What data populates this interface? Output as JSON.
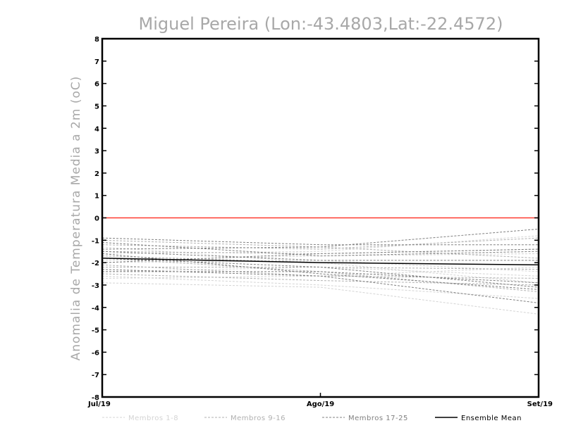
{
  "chart_data": {
    "type": "line",
    "title": "Miguel Pereira (Lon:-43.4803,Lat:-22.4572)",
    "ylabel": "Anomalia de Temperatura Media a 2m (oC)",
    "xlabel": "",
    "ylim": [
      -8,
      8
    ],
    "y_ticks": [
      "8",
      "7",
      "6",
      "5",
      "4",
      "3",
      "2",
      "1",
      "0",
      "-1",
      "-2",
      "-3",
      "-4",
      "-5",
      "-6",
      "-7",
      "-8"
    ],
    "y_tick_values": [
      8,
      7,
      6,
      5,
      4,
      3,
      2,
      1,
      0,
      -1,
      -2,
      -3,
      -4,
      -5,
      -6,
      -7,
      -8
    ],
    "categories": [
      "Jul/19",
      "Ago/19",
      "Set/19"
    ],
    "reference_line": {
      "y": 0,
      "color": "#ff3b30"
    },
    "grid": false,
    "legend_position": "bottom",
    "legend": [
      {
        "name": "Membros 1-8",
        "color": "#d4d4d4",
        "style": "dashed"
      },
      {
        "name": "Membros 9-16",
        "color": "#b0b0b0",
        "style": "dashed"
      },
      {
        "name": "Membros 17-25",
        "color": "#808080",
        "style": "dashed"
      },
      {
        "name": "Ensemble Mean",
        "color": "#000000",
        "style": "solid"
      }
    ],
    "series": [
      {
        "group": 0,
        "values": [
          -2.9,
          -3.1,
          -4.3
        ]
      },
      {
        "group": 0,
        "values": [
          -2.6,
          -3.0,
          -3.6
        ]
      },
      {
        "group": 0,
        "values": [
          -1.6,
          -1.5,
          -0.8
        ]
      },
      {
        "group": 0,
        "values": [
          -2.4,
          -2.2,
          -2.6
        ]
      },
      {
        "group": 0,
        "values": [
          -2.0,
          -1.9,
          -2.4
        ]
      },
      {
        "group": 0,
        "values": [
          -1.3,
          -2.0,
          -2.9
        ]
      },
      {
        "group": 0,
        "values": [
          -2.7,
          -2.6,
          -2.2
        ]
      },
      {
        "group": 0,
        "values": [
          -1.9,
          -1.7,
          -1.6
        ]
      },
      {
        "group": 1,
        "values": [
          -1.2,
          -1.4,
          -0.9
        ]
      },
      {
        "group": 1,
        "values": [
          -1.8,
          -2.4,
          -3.3
        ]
      },
      {
        "group": 1,
        "values": [
          -2.2,
          -2.2,
          -2.3
        ]
      },
      {
        "group": 1,
        "values": [
          -1.5,
          -1.6,
          -1.4
        ]
      },
      {
        "group": 1,
        "values": [
          -2.5,
          -2.8,
          -3.0
        ]
      },
      {
        "group": 1,
        "values": [
          -1.7,
          -2.0,
          -2.1
        ]
      },
      {
        "group": 1,
        "values": [
          -1.0,
          -1.3,
          -1.8
        ]
      },
      {
        "group": 1,
        "values": [
          -2.1,
          -2.6,
          -2.7
        ]
      },
      {
        "group": 2,
        "values": [
          -0.9,
          -1.2,
          -1.2
        ]
      },
      {
        "group": 2,
        "values": [
          -1.6,
          -2.5,
          -3.2
        ]
      },
      {
        "group": 2,
        "values": [
          -2.3,
          -2.6,
          -3.8
        ]
      },
      {
        "group": 2,
        "values": [
          -1.4,
          -1.3,
          -0.5
        ]
      },
      {
        "group": 2,
        "values": [
          -1.8,
          -2.2,
          -3.1
        ]
      },
      {
        "group": 2,
        "values": [
          -1.1,
          -1.7,
          -1.5
        ]
      },
      {
        "group": 2,
        "values": [
          -2.4,
          -2.4,
          -2.9
        ]
      },
      {
        "group": 2,
        "values": [
          -1.5,
          -1.9,
          -1.9
        ]
      },
      {
        "group": 2,
        "values": [
          -2.0,
          -1.6,
          -1.4
        ]
      },
      {
        "group": 3,
        "values": [
          -1.8,
          -2.0,
          -2.1
        ]
      }
    ]
  }
}
